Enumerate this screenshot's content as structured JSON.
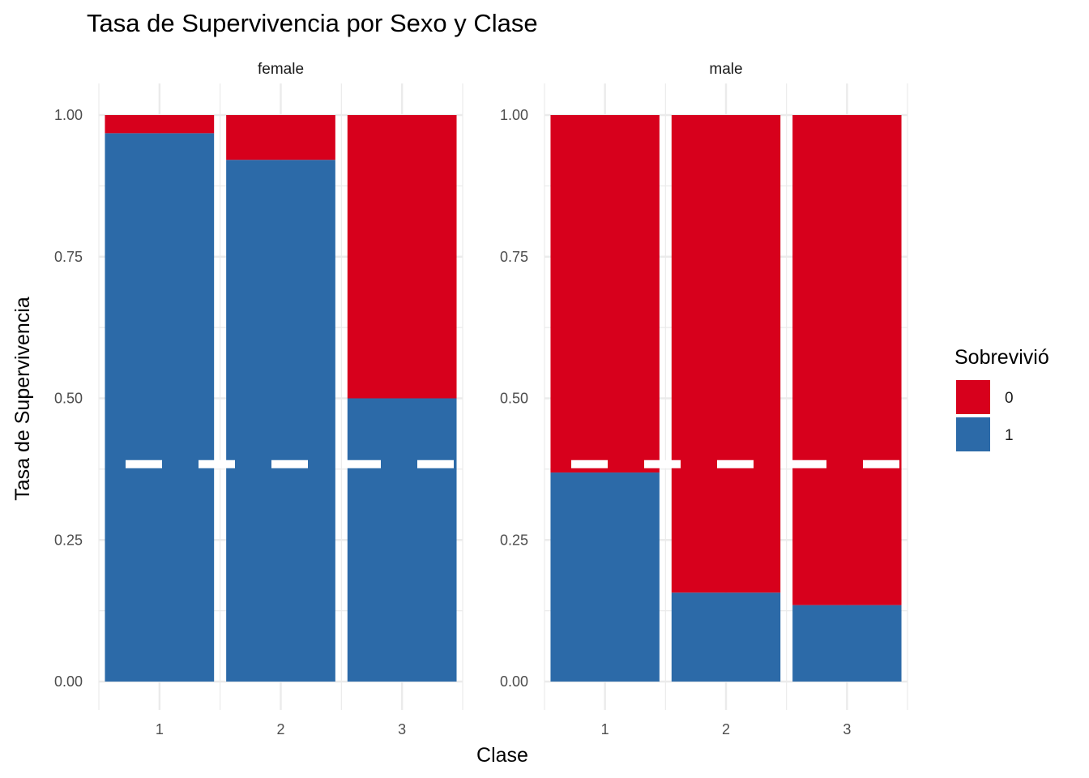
{
  "chart_data": {
    "type": "bar",
    "stacked": true,
    "title": "Tasa de Supervivencia por Sexo y Clase",
    "xlabel": "Clase",
    "ylabel": "Tasa de Supervivencia",
    "ylim": [
      0,
      1
    ],
    "yticks": [
      "0.00",
      "0.25",
      "0.50",
      "0.75",
      "1.00"
    ],
    "grid": true,
    "legend": {
      "title": "Sobrevivió",
      "position": "right",
      "entries": [
        {
          "label": "0",
          "color": "#D7001C"
        },
        {
          "label": "1",
          "color": "#2C6AA8"
        }
      ]
    },
    "reference_line": {
      "y": 0.3838,
      "style": "dashed",
      "color": "#FFFFFF"
    },
    "categories": [
      "1",
      "2",
      "3"
    ],
    "facets": [
      {
        "name": "female",
        "series": [
          {
            "name": "1",
            "values": [
              0.968,
              0.921,
              0.5
            ]
          },
          {
            "name": "0",
            "values": [
              0.032,
              0.079,
              0.5
            ]
          }
        ]
      },
      {
        "name": "male",
        "series": [
          {
            "name": "1",
            "values": [
              0.369,
              0.157,
              0.135
            ]
          },
          {
            "name": "0",
            "values": [
              0.631,
              0.843,
              0.865
            ]
          }
        ]
      }
    ]
  }
}
